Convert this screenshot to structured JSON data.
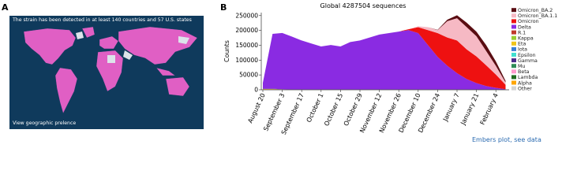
{
  "panel_a": {
    "label": "A",
    "caption": "The strain has been detected in at least 140 countries and 57 U.S. states",
    "link": "View geographic prelence"
  },
  "panel_b": {
    "label": "B",
    "link": "Embers plot, see data"
  },
  "chart_data": {
    "type": "stacked-area",
    "title": "Global 4287504 sequences",
    "y_label": "Counts",
    "categories": [
      "August 20",
      null,
      "September 3",
      null,
      "September 17",
      null,
      "October 1",
      null,
      "October 15",
      null,
      "October 29",
      null,
      "November 12",
      null,
      "November 26",
      null,
      "December 10",
      null,
      "December 24",
      null,
      "January 7",
      null,
      "January 21",
      null,
      "February 4",
      null
    ],
    "ylim": [
      0,
      260000
    ],
    "yticks": [
      0,
      50000,
      100000,
      150000,
      200000,
      250000
    ],
    "series": [
      {
        "name": "Omicron_BA.2",
        "color": "#5a0d12",
        "values": [
          0,
          0,
          0,
          0,
          0,
          0,
          0,
          0,
          0,
          0,
          0,
          0,
          0,
          0,
          0,
          0,
          0,
          0,
          1000,
          5000,
          10000,
          15000,
          15000,
          20000,
          15000,
          5000
        ]
      },
      {
        "name": "Omicron_BA.1.1",
        "color": "#f6b9c4",
        "values": [
          0,
          0,
          0,
          0,
          0,
          0,
          0,
          0,
          0,
          0,
          0,
          0,
          0,
          0,
          0,
          0,
          3000,
          10000,
          10000,
          55000,
          75000,
          75000,
          68000,
          48000,
          29000,
          8000
        ]
      },
      {
        "name": "Omicron",
        "color": "#ee1111",
        "values": [
          0,
          0,
          0,
          0,
          0,
          0,
          0,
          0,
          0,
          0,
          0,
          0,
          0,
          0,
          0,
          3000,
          20000,
          50000,
          80000,
          95000,
          110000,
          100000,
          90000,
          70000,
          45000,
          15000
        ]
      },
      {
        "name": "Delta",
        "color": "#8a2be2",
        "values": [
          20000,
          185000,
          190000,
          178000,
          165000,
          155000,
          145000,
          150000,
          145000,
          160000,
          165000,
          175000,
          185000,
          190000,
          195000,
          200000,
          190000,
          150000,
          110000,
          80000,
          55000,
          35000,
          22000,
          12000,
          6000,
          2000
        ]
      },
      {
        "name": "R.1",
        "color": "#c0392b",
        "values": [
          0,
          0,
          0,
          0,
          0,
          0,
          0,
          0,
          0,
          0,
          0,
          0,
          0,
          0,
          0,
          0,
          0,
          0,
          0,
          0,
          0,
          0,
          0,
          0,
          0,
          0
        ]
      },
      {
        "name": "Kappa",
        "color": "#9acd32",
        "values": [
          0,
          0,
          0,
          0,
          0,
          0,
          0,
          0,
          0,
          0,
          0,
          0,
          0,
          0,
          0,
          0,
          0,
          0,
          0,
          0,
          0,
          0,
          0,
          0,
          0,
          0
        ]
      },
      {
        "name": "Eta",
        "color": "#f0c419",
        "values": [
          0,
          0,
          0,
          0,
          0,
          0,
          0,
          0,
          0,
          0,
          0,
          0,
          0,
          0,
          0,
          0,
          0,
          0,
          0,
          0,
          0,
          0,
          0,
          0,
          0,
          0
        ]
      },
      {
        "name": "Iota",
        "color": "#3a7fd5",
        "values": [
          0,
          0,
          0,
          0,
          0,
          0,
          0,
          0,
          0,
          0,
          0,
          0,
          0,
          0,
          0,
          0,
          0,
          0,
          0,
          0,
          0,
          0,
          0,
          0,
          0,
          0
        ]
      },
      {
        "name": "Epsilon",
        "color": "#40e0d0",
        "values": [
          0,
          0,
          0,
          0,
          0,
          0,
          0,
          0,
          0,
          0,
          0,
          0,
          0,
          0,
          0,
          0,
          0,
          0,
          0,
          0,
          0,
          0,
          0,
          0,
          0,
          0
        ]
      },
      {
        "name": "Gamma",
        "color": "#4b2a8a",
        "values": [
          500,
          500,
          0,
          0,
          0,
          0,
          0,
          0,
          0,
          0,
          0,
          0,
          0,
          0,
          0,
          0,
          0,
          0,
          0,
          0,
          0,
          0,
          0,
          0,
          0,
          0
        ]
      },
      {
        "name": "Mu",
        "color": "#2e8b57",
        "values": [
          500,
          500,
          0,
          0,
          0,
          0,
          0,
          0,
          0,
          0,
          0,
          0,
          0,
          0,
          0,
          0,
          0,
          0,
          0,
          0,
          0,
          0,
          0,
          0,
          0,
          0
        ]
      },
      {
        "name": "Beta",
        "color": "#ff99cc",
        "values": [
          0,
          0,
          0,
          0,
          0,
          0,
          0,
          0,
          0,
          0,
          0,
          0,
          0,
          0,
          0,
          0,
          0,
          0,
          0,
          0,
          0,
          0,
          0,
          0,
          0,
          0
        ]
      },
      {
        "name": "Lambda",
        "color": "#1f6b1f",
        "values": [
          0,
          0,
          0,
          0,
          0,
          0,
          0,
          0,
          0,
          0,
          0,
          0,
          0,
          0,
          0,
          0,
          0,
          0,
          0,
          0,
          0,
          0,
          0,
          0,
          0,
          0
        ]
      },
      {
        "name": "Alpha",
        "color": "#ffa500",
        "values": [
          1000,
          1000,
          500,
          0,
          0,
          0,
          0,
          0,
          0,
          0,
          0,
          0,
          0,
          0,
          0,
          0,
          0,
          0,
          0,
          0,
          0,
          0,
          0,
          0,
          0,
          0
        ]
      },
      {
        "name": "Other",
        "color": "#d3d3d3",
        "values": [
          1500,
          1500,
          1000,
          1000,
          1000,
          1000,
          1000,
          1000,
          1000,
          1000,
          1000,
          1000,
          1000,
          1000,
          1000,
          1000,
          1000,
          1000,
          1000,
          1000,
          1000,
          1000,
          500,
          500,
          500,
          0
        ]
      }
    ]
  }
}
